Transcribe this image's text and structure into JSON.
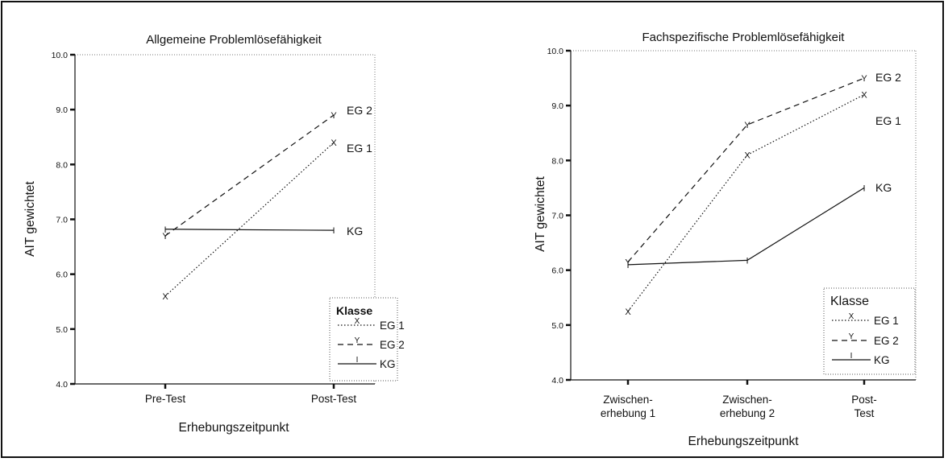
{
  "chart_data": [
    {
      "type": "line",
      "title": "Allgemeine Problemlösefähigkeit",
      "xlabel": "Erhebungszeitpunkt",
      "ylabel": "AIT gewichtet",
      "categories": [
        "Pre-Test",
        "Post-Test"
      ],
      "ylim": [
        4.0,
        10.0
      ],
      "yticks": [
        "4.0",
        "5.0",
        "6.0",
        "7.0",
        "8.0",
        "9.0",
        "10.0"
      ],
      "legend_title": "Klasse",
      "legend_position": "bottom-right",
      "series": [
        {
          "name": "EG 1",
          "marker": "X",
          "style": "dotted",
          "values": [
            5.6,
            8.4
          ]
        },
        {
          "name": "EG 2",
          "marker": "Y",
          "style": "dashed",
          "values": [
            6.7,
            8.9
          ]
        },
        {
          "name": "KG",
          "marker": "I",
          "style": "solid",
          "values": [
            6.82,
            6.8
          ]
        }
      ]
    },
    {
      "type": "line",
      "title": "Fachspezifische Problemlösefähigkeit",
      "xlabel": "Erhebungszeitpunkt",
      "ylabel": "AIT gewichtet",
      "categories": [
        [
          "Zwischen-",
          "erhebung 1"
        ],
        [
          "Zwischen-",
          "erhebung 2"
        ],
        [
          "Post-",
          "Test"
        ]
      ],
      "ylim": [
        4.0,
        10.0
      ],
      "yticks": [
        "4.0",
        "5.0",
        "6.0",
        "7.0",
        "8.0",
        "9.0",
        "10.0"
      ],
      "legend_title": "Klasse",
      "legend_position": "bottom-right",
      "series": [
        {
          "name": "EG 1",
          "marker": "X",
          "style": "dotted",
          "values": [
            5.25,
            8.1,
            9.2
          ]
        },
        {
          "name": "EG 2",
          "marker": "Y",
          "style": "dashed",
          "values": [
            6.15,
            8.65,
            9.5
          ]
        },
        {
          "name": "KG",
          "marker": "I",
          "style": "solid",
          "values": [
            6.1,
            6.18,
            7.5
          ]
        }
      ]
    }
  ]
}
